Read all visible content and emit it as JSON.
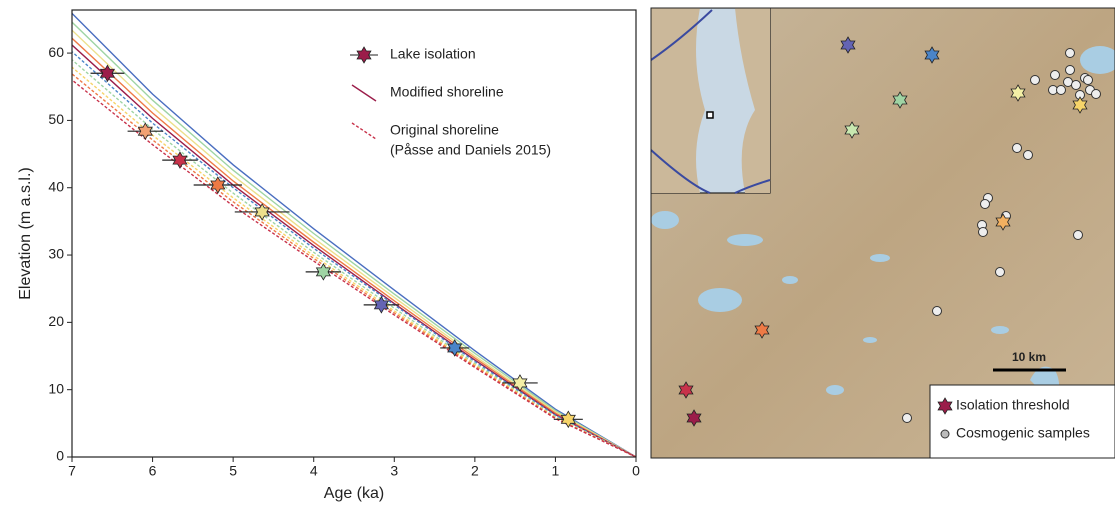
{
  "chart_data": {
    "type": "scatter",
    "xlabel": "Age (ka)",
    "ylabel": "Elevation (m a.s.l.)",
    "xlim": [
      7,
      0
    ],
    "ylim": [
      0,
      66.4
    ],
    "xticks": [
      7,
      6,
      5,
      4,
      3,
      2,
      1,
      0
    ],
    "yticks": [
      0,
      10,
      20,
      30,
      40,
      50,
      60
    ],
    "series": [
      {
        "name": "Lake isolation",
        "marker": "star",
        "edgecolor": "#222222",
        "x": [
          6.56,
          6.09,
          5.66,
          5.19,
          4.64,
          3.88,
          3.16,
          2.25,
          1.44,
          0.84
        ],
        "xerr": [
          0.21,
          0.22,
          0.22,
          0.3,
          0.34,
          0.22,
          0.22,
          0.18,
          0.22,
          0.18
        ],
        "values": [
          57.0,
          48.4,
          44.1,
          40.4,
          36.4,
          27.5,
          22.6,
          16.2,
          11.0,
          5.6
        ],
        "colors": [
          "#9b1d4a",
          "#f2a173",
          "#c8324a",
          "#ee7a45",
          "#ece08c",
          "#9fd4a4",
          "#6464b4",
          "#4a84c8",
          "#f3efa6",
          "#f6d46a"
        ]
      }
    ],
    "shoreline_groups": [
      {
        "name": "Modified shoreline",
        "style": "solid",
        "x": [
          0,
          1,
          2,
          3,
          4,
          5,
          6,
          7
        ],
        "lines": [
          {
            "color": "#4a6ec0",
            "values": [
              0,
              7.1,
              15.8,
              24.8,
              33.9,
              43.4,
              53.9,
              65.9
            ]
          },
          {
            "color": "#9fd4a4",
            "values": [
              0,
              6.9,
              15.4,
              24.2,
              33.2,
              42.6,
              53.0,
              64.6
            ]
          },
          {
            "color": "#ece08c",
            "values": [
              0,
              6.7,
              15.0,
              23.7,
              32.5,
              41.8,
              52.0,
              63.4
            ]
          },
          {
            "color": "#ee7a45",
            "values": [
              0,
              6.5,
              14.7,
              23.2,
              31.9,
              41.0,
              51.1,
              62.2
            ]
          },
          {
            "color": "#9b1d4a",
            "values": [
              0,
              6.3,
              14.4,
              22.8,
              31.4,
              40.4,
              50.3,
              61.2
            ]
          }
        ]
      },
      {
        "name": "Original shoreline",
        "note": "(Påsse and Daniels 2015)",
        "style": "dashed",
        "x": [
          0,
          1,
          2,
          3,
          4,
          5,
          6,
          7
        ],
        "lines": [
          {
            "color": "#4a84c8",
            "values": [
              0,
              6.2,
              14.2,
              22.6,
              31.0,
              40.0,
              49.6,
              60.2
            ]
          },
          {
            "color": "#9fd4a4",
            "values": [
              0,
              6.0,
              13.9,
              22.1,
              30.4,
              39.2,
              48.7,
              59.0
            ]
          },
          {
            "color": "#f6d46a",
            "values": [
              0,
              5.9,
              13.7,
              21.7,
              29.9,
              38.5,
              47.8,
              57.9
            ]
          },
          {
            "color": "#ee7a45",
            "values": [
              0,
              5.8,
              13.5,
              21.4,
              29.5,
              37.9,
              47.1,
              56.9
            ]
          },
          {
            "color": "#c8324a",
            "values": [
              0,
              5.7,
              13.3,
              21.1,
              29.1,
              37.3,
              46.4,
              56.0
            ]
          }
        ]
      }
    ]
  },
  "map": {
    "scale_label": "10 km",
    "legend": [
      "Isolation threshold",
      "Cosmogenic samples"
    ]
  }
}
